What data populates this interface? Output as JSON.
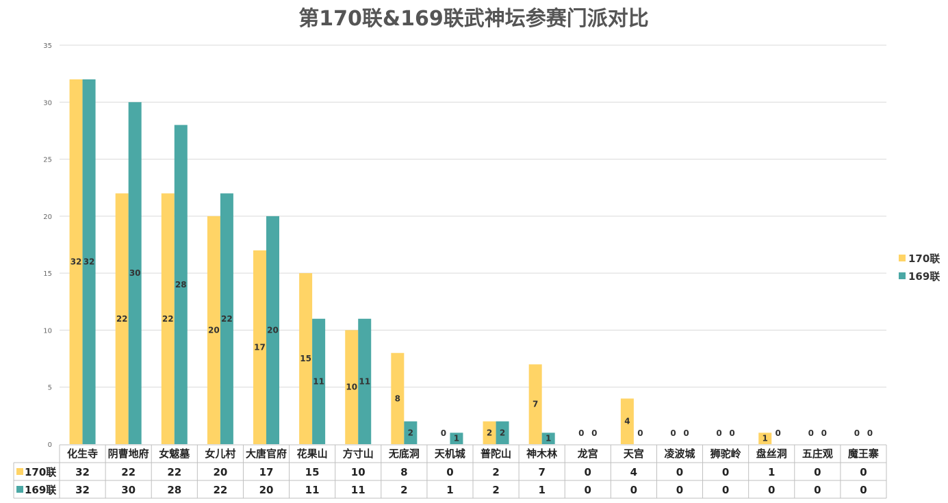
{
  "chart_data": {
    "type": "bar",
    "title": "第170联&169联武神坛参赛门派对比",
    "categories": [
      "化生寺",
      "阴曹地府",
      "女魃墓",
      "女儿村",
      "大唐官府",
      "花果山",
      "方寸山",
      "无底洞",
      "天机城",
      "普陀山",
      "神木林",
      "龙宫",
      "天宫",
      "凌波城",
      "狮驼岭",
      "盘丝洞",
      "五庄观",
      "魔王寨"
    ],
    "series": [
      {
        "name": "170联",
        "color": "#FFD466",
        "values": [
          32,
          22,
          22,
          20,
          17,
          15,
          10,
          8,
          0,
          2,
          7,
          0,
          4,
          0,
          0,
          1,
          0,
          0
        ]
      },
      {
        "name": "169联",
        "color": "#4BA8A5",
        "values": [
          32,
          30,
          28,
          22,
          20,
          11,
          11,
          2,
          1,
          2,
          1,
          0,
          0,
          0,
          0,
          0,
          0,
          0
        ]
      }
    ],
    "ylim": [
      0,
      35
    ],
    "yticks": [
      0,
      5,
      10,
      15,
      20,
      25,
      30,
      35
    ],
    "grid": true,
    "legend_position": "right",
    "data_table": true
  }
}
